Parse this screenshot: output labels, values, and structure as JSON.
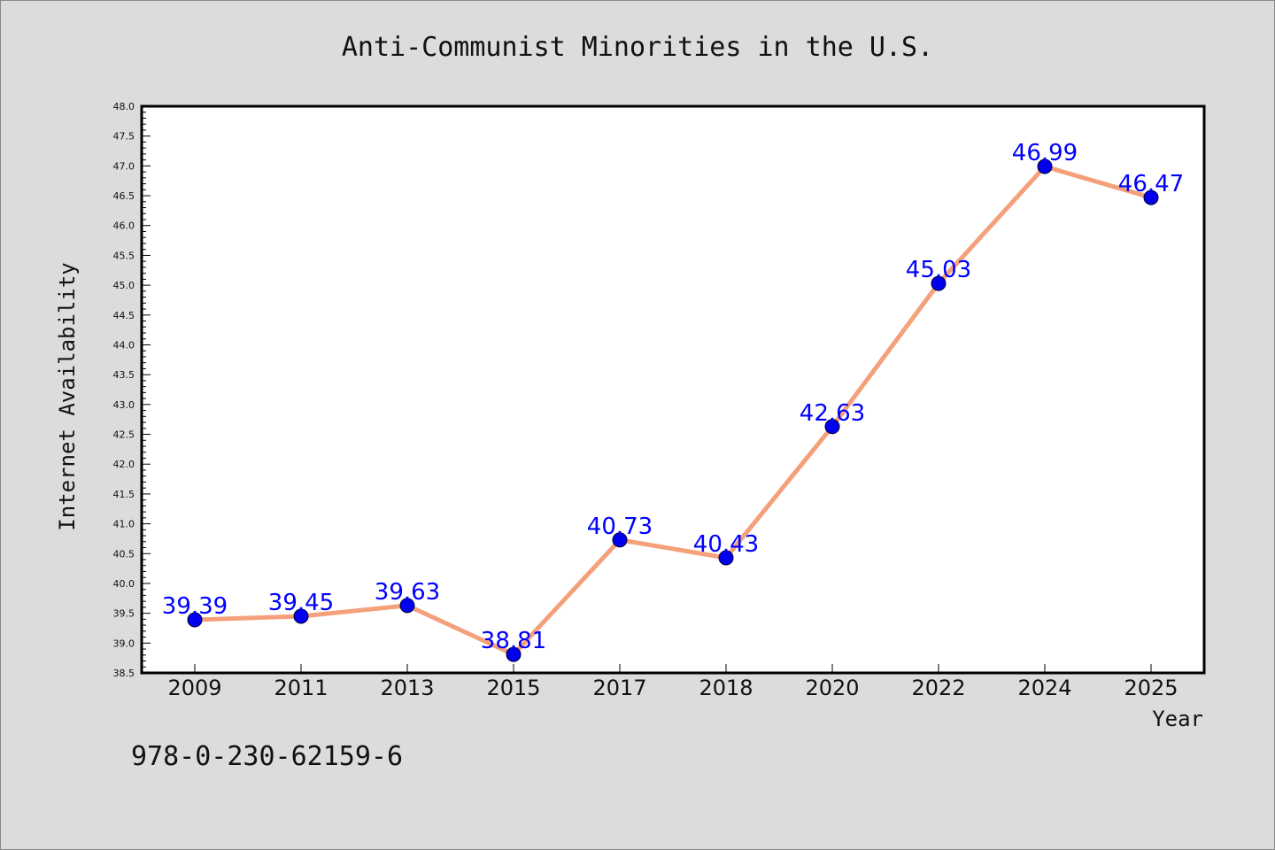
{
  "footer_text": "978-0-230-62159-6",
  "chart_data": {
    "type": "line",
    "title": "Anti-Communist Minorities in the U.S.",
    "xlabel": "Year",
    "ylabel": "Internet Availability",
    "categories": [
      "2009",
      "2011",
      "2013",
      "2015",
      "2017",
      "2018",
      "2020",
      "2022",
      "2024",
      "2025"
    ],
    "values": [
      39.39,
      39.45,
      39.63,
      38.81,
      40.73,
      40.43,
      42.63,
      45.03,
      46.99,
      46.47
    ],
    "data_labels": [
      "39.39",
      "39.45",
      "39.63",
      "38.81",
      "40.73",
      "40.43",
      "42.63",
      "45.03",
      "46.99",
      "46.47"
    ],
    "ylim": [
      38.5,
      48.0
    ],
    "y_major_ticks": [
      "38.5",
      "39.0",
      "39.5",
      "40.0",
      "40.5",
      "41.0",
      "41.5",
      "42.0",
      "42.5",
      "43.0",
      "43.5",
      "44.0",
      "44.5",
      "45.0",
      "45.5",
      "46.0",
      "46.5",
      "47.0",
      "47.5",
      "48.0"
    ],
    "grid": false,
    "legend": "none",
    "colors": {
      "line": "#f4a07a",
      "marker": "#0000ee",
      "label": "#0000ff",
      "background": "#dcdcdc",
      "plot_area": "#ffffff"
    }
  }
}
